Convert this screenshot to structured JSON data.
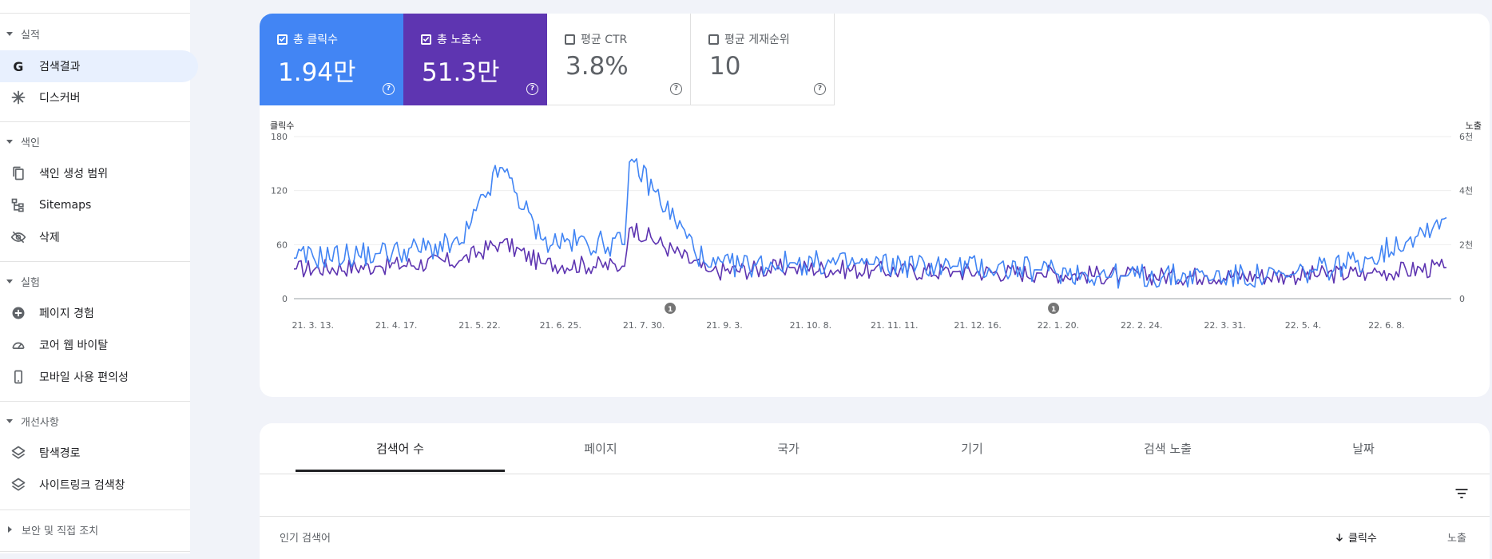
{
  "sidebar": {
    "sections": [
      {
        "label": "실적",
        "expanded": true,
        "items": [
          {
            "label": "검색결과",
            "icon": "google-g-icon",
            "active": true
          },
          {
            "label": "디스커버",
            "icon": "asterisk-icon",
            "active": false
          }
        ]
      },
      {
        "label": "색인",
        "expanded": true,
        "items": [
          {
            "label": "색인 생성 범위",
            "icon": "copy-pages-icon",
            "active": false
          },
          {
            "label": "Sitemaps",
            "icon": "sitemap-icon",
            "active": false
          },
          {
            "label": "삭제",
            "icon": "eye-off-icon",
            "active": false
          }
        ]
      },
      {
        "label": "실험",
        "expanded": true,
        "items": [
          {
            "label": "페이지 경험",
            "icon": "plus-circle-icon",
            "active": false
          },
          {
            "label": "코어 웹 바이탈",
            "icon": "speedometer-icon",
            "active": false
          },
          {
            "label": "모바일 사용 편의성",
            "icon": "phone-icon",
            "active": false
          }
        ]
      },
      {
        "label": "개선사항",
        "expanded": true,
        "items": [
          {
            "label": "탐색경로",
            "icon": "layers-icon",
            "active": false
          },
          {
            "label": "사이트링크 검색창",
            "icon": "layers-icon",
            "active": false
          }
        ]
      },
      {
        "label": "보안 및 직접 조치",
        "expanded": false,
        "items": []
      }
    ]
  },
  "metrics": [
    {
      "label": "총 클릭수",
      "value": "1.94만",
      "checked": true,
      "color": "#4285f4"
    },
    {
      "label": "총 노출수",
      "value": "51.3만",
      "checked": true,
      "color": "#5e35b1"
    },
    {
      "label": "평균 CTR",
      "value": "3.8%",
      "checked": false,
      "color": "#ffffff"
    },
    {
      "label": "평균 게재순위",
      "value": "10",
      "checked": false,
      "color": "#ffffff"
    }
  ],
  "chart_data": {
    "type": "line",
    "ylabel_left": "클릭수",
    "ylabel_right": "노출",
    "left_ticks": [
      "0",
      "60",
      "120",
      "180"
    ],
    "right_ticks": [
      "0",
      "2천",
      "4천",
      "6천"
    ],
    "ylim_left": [
      0,
      180
    ],
    "ylim_right": [
      0,
      6000
    ],
    "x_ticks": [
      "21. 3. 13.",
      "21. 4. 17.",
      "21. 5. 22.",
      "21. 6. 25.",
      "21. 7. 30.",
      "21. 9. 3.",
      "21. 10. 8.",
      "21. 11. 11.",
      "21. 12. 16.",
      "22. 1. 20.",
      "22. 2. 24.",
      "22. 3. 31.",
      "22. 5. 4.",
      "22. 6. 8."
    ],
    "annotations": [
      {
        "label": "1",
        "at": "21. 8. 18."
      },
      {
        "label": "1",
        "at": "22. 1. 26."
      }
    ],
    "grid": true,
    "series": [
      {
        "name": "클릭수",
        "color": "#4285f4",
        "axis": "left",
        "dates": [
          "21. 3. 13.",
          "21. 4. 17.",
          "21. 5. 22.",
          "21. 6. 8.",
          "21. 6. 25.",
          "21. 7. 30.",
          "21. 8. 1.",
          "21. 9. 3.",
          "21. 10. 8.",
          "21. 11. 11.",
          "21. 12. 16.",
          "22. 1. 20.",
          "22. 2. 24.",
          "22. 3. 31.",
          "22. 5. 4.",
          "22. 6. 8.",
          "22. 7. 10."
        ],
        "values": [
          45,
          50,
          60,
          148,
          65,
          60,
          158,
          35,
          40,
          38,
          36,
          32,
          25,
          25,
          24,
          45,
          90
        ]
      },
      {
        "name": "노출",
        "color": "#5e35b1",
        "axis": "right",
        "dates": [
          "21. 3. 13.",
          "21. 4. 17.",
          "21. 5. 22.",
          "21. 6. 8.",
          "21. 6. 25.",
          "21. 7. 30.",
          "21. 8. 1.",
          "21. 9. 3.",
          "21. 10. 8.",
          "21. 11. 11.",
          "21. 12. 16.",
          "22. 1. 20.",
          "22. 2. 24.",
          "22. 3. 31.",
          "22. 5. 4.",
          "22. 6. 8.",
          "22. 7. 10."
        ],
        "values": [
          1100,
          1200,
          1400,
          2100,
          1300,
          1200,
          2700,
          1000,
          1150,
          1050,
          1000,
          950,
          850,
          850,
          850,
          950,
          1150
        ]
      }
    ]
  },
  "tabs": [
    {
      "label": "검색어 수",
      "active": true
    },
    {
      "label": "페이지",
      "active": false
    },
    {
      "label": "국가",
      "active": false
    },
    {
      "label": "기기",
      "active": false
    },
    {
      "label": "검색 노출",
      "active": false
    },
    {
      "label": "날짜",
      "active": false
    }
  ],
  "table": {
    "col_query": "인기 검색어",
    "col_clicks": "클릭수",
    "col_impressions": "노출"
  }
}
